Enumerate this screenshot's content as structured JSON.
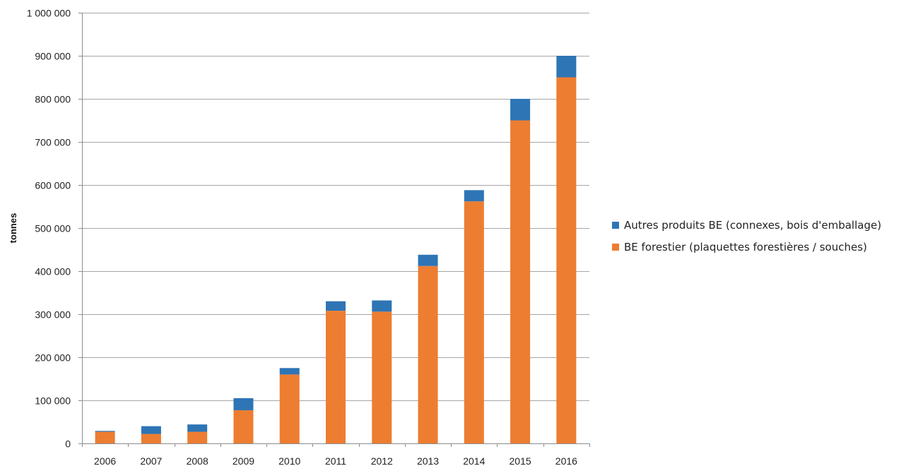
{
  "chart_data": {
    "type": "bar",
    "stacked": true,
    "title": "",
    "xlabel": "",
    "ylabel": "tonnes",
    "ylim": [
      0,
      1000000
    ],
    "yticks": [
      0,
      100000,
      200000,
      300000,
      400000,
      500000,
      600000,
      700000,
      800000,
      900000,
      1000000
    ],
    "ytick_labels": [
      "0",
      "100 000",
      "200 000",
      "300 000",
      "400 000",
      "500 000",
      "600 000",
      "700 000",
      "800 000",
      "900 000",
      "1 000 000"
    ],
    "categories": [
      "2006",
      "2007",
      "2008",
      "2009",
      "2010",
      "2011",
      "2012",
      "2013",
      "2014",
      "2015",
      "2016"
    ],
    "series": [
      {
        "name": "BE forestier (plaquettes forestières / souches)",
        "color": "#ED7D31",
        "values": [
          27000,
          22000,
          27000,
          77000,
          160000,
          308000,
          306000,
          412000,
          562000,
          750000,
          850000
        ]
      },
      {
        "name": "Autres produits BE (connexes, bois d'emballage)",
        "color": "#2E75B6",
        "values": [
          2000,
          18000,
          17000,
          28000,
          15000,
          22000,
          26000,
          26000,
          26000,
          50000,
          50000
        ]
      }
    ],
    "legend_order": [
      1,
      0
    ],
    "legend_position": "right",
    "grid": true
  }
}
